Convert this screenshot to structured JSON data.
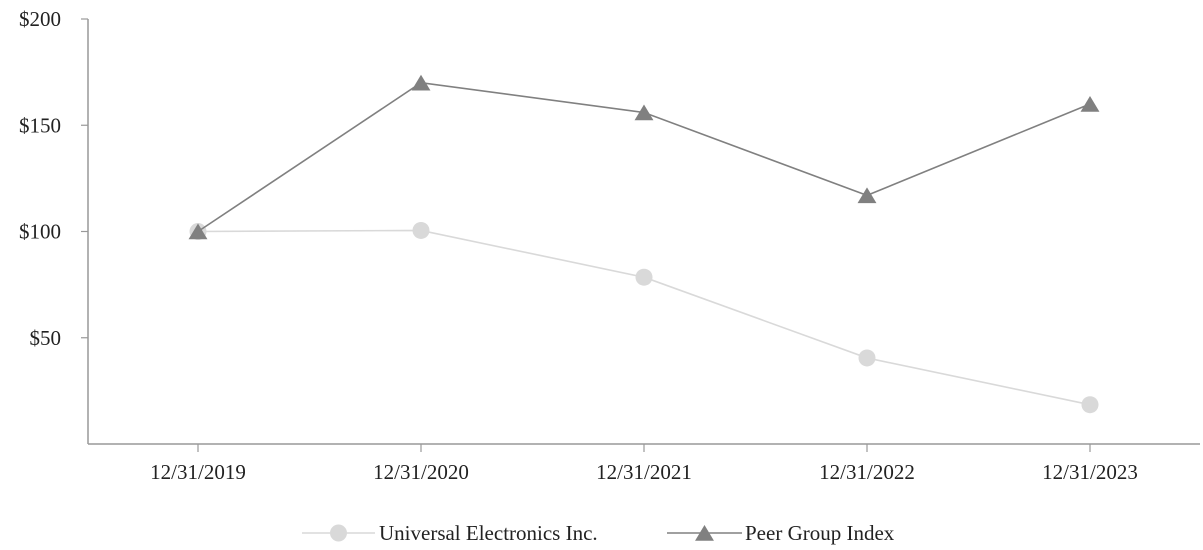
{
  "chart_data": {
    "type": "line",
    "categories": [
      "12/31/2019",
      "12/31/2020",
      "12/31/2021",
      "12/31/2022",
      "12/31/2023"
    ],
    "y_ticks": [
      "$50",
      "$100",
      "$150",
      "$200"
    ],
    "y_tick_values": [
      50,
      100,
      150,
      200
    ],
    "ylim": [
      0,
      200
    ],
    "grid": false,
    "legend_position": "bottom",
    "series": [
      {
        "name": "Universal Electronics Inc.",
        "values": [
          100,
          100.5,
          78.5,
          40.5,
          18.5
        ],
        "color": "#d9d9d9",
        "marker": "circle"
      },
      {
        "name": "Peer Group Index",
        "values": [
          100,
          170,
          156,
          117,
          160
        ],
        "color": "#808080",
        "marker": "triangle"
      }
    ]
  }
}
